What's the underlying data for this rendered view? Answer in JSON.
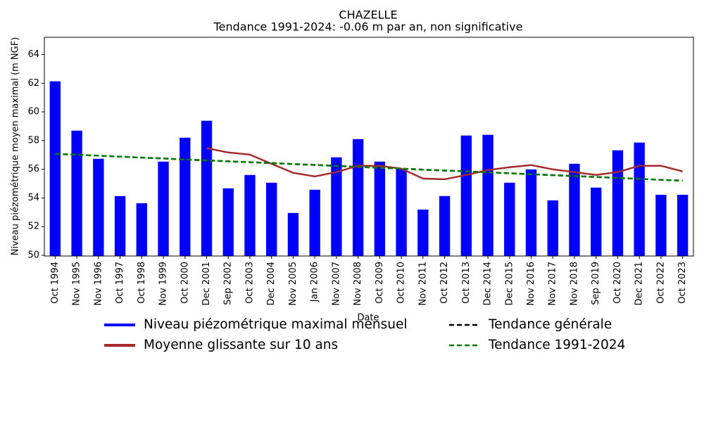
{
  "chart_data": {
    "type": "bar",
    "title": "CHAZELLE",
    "subtitle": "Tendance 1991-2024: -0.06 m par an, non significative",
    "x_label": "Date",
    "y_label": "Niveau piézométrique moyen maximal (m NGF)",
    "categories": [
      "Oct 1994",
      "Nov 1995",
      "Nov 1996",
      "Oct 1997",
      "Oct 1998",
      "Nov 1999",
      "Oct 2000",
      "Dec 2001",
      "Sep 2002",
      "Oct 2003",
      "Dec 2004",
      "Nov 2005",
      "Jan 2006",
      "Nov 2007",
      "Nov 2008",
      "Oct 2009",
      "Oct 2010",
      "Nov 2011",
      "Oct 2012",
      "Oct 2013",
      "Dec 2014",
      "Dec 2015",
      "Nov 2016",
      "Nov 2017",
      "Nov 2018",
      "Sep 2019",
      "Oct 2020",
      "Dec 2021",
      "Oct 2022",
      "Oct 2023"
    ],
    "series": [
      {
        "name": "Niveau piézométrique maximal mensuel",
        "type": "bar",
        "color": "#0000ff",
        "values": [
          62.13,
          58.69,
          56.73,
          54.13,
          53.63,
          56.53,
          58.2,
          59.38,
          54.67,
          55.6,
          55.06,
          52.95,
          54.57,
          56.83,
          58.1,
          56.53,
          56.04,
          53.19,
          54.13,
          58.35,
          58.4,
          55.06,
          55.99,
          53.83,
          56.38,
          54.72,
          57.32,
          57.86,
          54.22,
          54.22
        ]
      },
      {
        "name": "Moyenne glissante sur 10 ans",
        "type": "line",
        "color": "#a52a2a",
        "dashed": false,
        "values": [
          null,
          null,
          null,
          null,
          null,
          null,
          null,
          57.47,
          57.17,
          57.02,
          56.38,
          55.75,
          55.5,
          55.8,
          56.24,
          56.24,
          56.04,
          55.35,
          55.3,
          55.6,
          55.94,
          56.14,
          56.29,
          55.99,
          55.8,
          55.6,
          55.8,
          56.24,
          56.24,
          55.85
        ]
      },
      {
        "name": "Tendance générale",
        "type": "line",
        "color": "#000000",
        "dashed": true,
        "values": [
          57.07,
          57.01,
          56.94,
          56.88,
          56.81,
          56.75,
          56.68,
          56.62,
          56.55,
          56.49,
          56.43,
          56.36,
          56.3,
          56.23,
          56.17,
          56.1,
          56.04,
          55.97,
          55.91,
          55.85,
          55.78,
          55.72,
          55.65,
          55.59,
          55.52,
          55.46,
          55.39,
          55.33,
          55.26,
          55.2
        ]
      },
      {
        "name": "Tendance 1991-2024",
        "type": "line",
        "color": "#008000",
        "dashed": true,
        "values": [
          57.07,
          57.01,
          56.94,
          56.88,
          56.81,
          56.75,
          56.68,
          56.62,
          56.55,
          56.49,
          56.43,
          56.36,
          56.3,
          56.23,
          56.17,
          56.1,
          56.04,
          55.97,
          55.91,
          55.85,
          55.78,
          55.72,
          55.65,
          55.59,
          55.52,
          55.46,
          55.39,
          55.33,
          55.26,
          55.2
        ]
      }
    ],
    "ylim": [
      49.95,
      65.2
    ],
    "yticks": [
      50,
      52,
      54,
      56,
      58,
      60,
      62,
      64
    ],
    "grid": false
  }
}
